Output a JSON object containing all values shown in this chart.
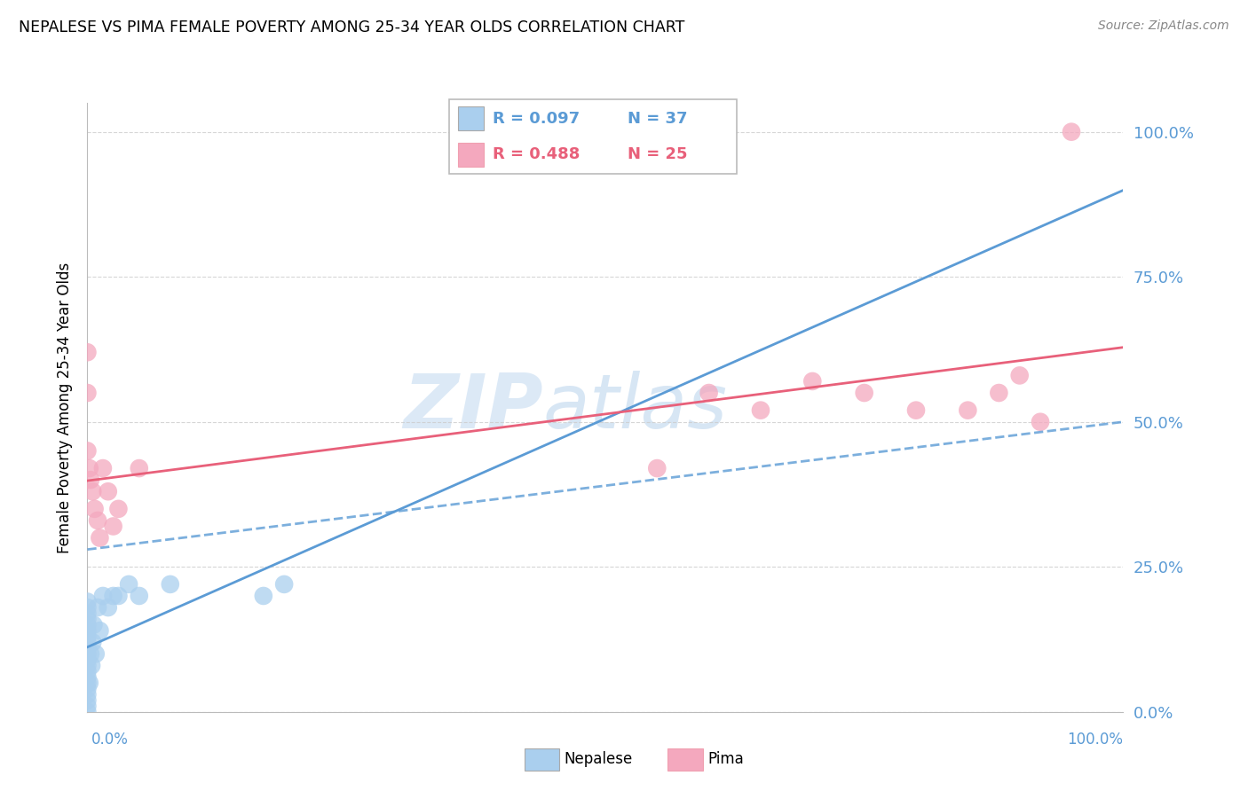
{
  "title": "NEPALESE VS PIMA FEMALE POVERTY AMONG 25-34 YEAR OLDS CORRELATION CHART",
  "source": "Source: ZipAtlas.com",
  "ylabel": "Female Poverty Among 25-34 Year Olds",
  "legend_nepalese": "Nepalese",
  "legend_pima": "Pima",
  "legend_r_nepalese": "R = 0.097",
  "legend_n_nepalese": "N = 37",
  "legend_r_pima": "R = 0.488",
  "legend_n_pima": "N = 25",
  "watermark_zip": "ZIP",
  "watermark_atlas": "atlas",
  "nepalese_color": "#aacfee",
  "pima_color": "#f4a8be",
  "nepalese_line_color": "#5b9bd5",
  "pima_line_color": "#e8607a",
  "tick_color": "#5b9bd5",
  "ytick_labels": [
    "0.0%",
    "25.0%",
    "50.0%",
    "75.0%",
    "100.0%"
  ],
  "ytick_values": [
    0.0,
    0.25,
    0.5,
    0.75,
    1.0
  ],
  "nepalese_x": [
    0.0,
    0.0,
    0.0,
    0.0,
    0.0,
    0.0,
    0.0,
    0.0,
    0.0,
    0.0,
    0.0,
    0.0,
    0.0,
    0.0,
    0.0,
    0.0,
    0.0,
    0.0,
    0.0,
    0.0,
    0.002,
    0.003,
    0.004,
    0.005,
    0.006,
    0.008,
    0.01,
    0.012,
    0.015,
    0.02,
    0.025,
    0.03,
    0.04,
    0.05,
    0.08,
    0.17,
    0.19
  ],
  "nepalese_y": [
    0.0,
    0.01,
    0.02,
    0.03,
    0.04,
    0.05,
    0.06,
    0.07,
    0.08,
    0.09,
    0.1,
    0.11,
    0.12,
    0.13,
    0.14,
    0.15,
    0.16,
    0.17,
    0.18,
    0.19,
    0.05,
    0.1,
    0.08,
    0.12,
    0.15,
    0.1,
    0.18,
    0.14,
    0.2,
    0.18,
    0.2,
    0.2,
    0.22,
    0.2,
    0.22,
    0.2,
    0.22
  ],
  "pima_x": [
    0.0,
    0.0,
    0.0,
    0.002,
    0.003,
    0.005,
    0.007,
    0.01,
    0.012,
    0.015,
    0.02,
    0.025,
    0.03,
    0.05,
    0.55,
    0.6,
    0.65,
    0.7,
    0.75,
    0.8,
    0.85,
    0.88,
    0.9,
    0.92,
    0.95
  ],
  "pima_y": [
    0.62,
    0.55,
    0.45,
    0.42,
    0.4,
    0.38,
    0.35,
    0.33,
    0.3,
    0.42,
    0.38,
    0.32,
    0.35,
    0.42,
    0.42,
    0.55,
    0.52,
    0.57,
    0.55,
    0.52,
    0.52,
    0.55,
    0.58,
    0.5,
    1.0
  ]
}
